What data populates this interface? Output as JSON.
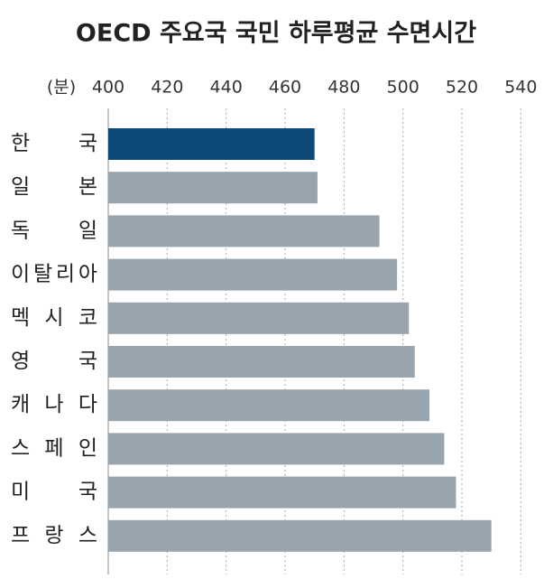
{
  "chart_data": {
    "type": "barh",
    "title": "OECD 주요국 국민 하루평균 수면시간",
    "x_label": "(분)",
    "categories": [
      "한 국",
      "일 본",
      "독 일",
      "이탈리아",
      "멕 시 코",
      "영 국",
      "캐 나 다",
      "스 페 인",
      "미 국",
      "프 랑 스"
    ],
    "values": [
      470,
      471,
      492,
      498,
      502,
      504,
      509,
      514,
      518,
      530
    ],
    "colors": [
      "#0d4a7a",
      "#98a4ae",
      "#98a4ae",
      "#98a4ae",
      "#98a4ae",
      "#98a4ae",
      "#98a4ae",
      "#98a4ae",
      "#98a4ae",
      "#98a4ae"
    ],
    "xlim": [
      400,
      550
    ],
    "xticks": [
      400,
      420,
      440,
      460,
      480,
      500,
      520,
      540
    ],
    "grid": true
  }
}
